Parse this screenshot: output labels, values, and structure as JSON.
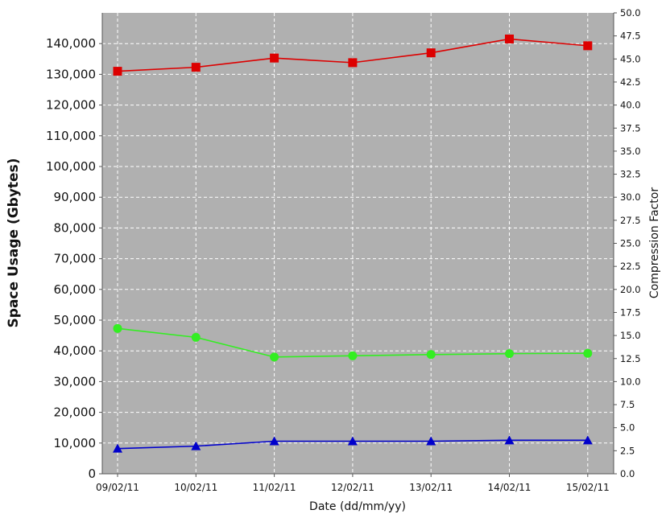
{
  "chart_data": {
    "type": "line",
    "title": "",
    "xlabel": "Date (dd/mm/yy)",
    "ylabel": "Space Usage (Gbytes)",
    "y2label": "Compression Factor",
    "categories": [
      "09/02/11",
      "10/02/11",
      "11/02/11",
      "12/02/11",
      "13/02/11",
      "14/02/11",
      "15/02/11"
    ],
    "ylim": [
      0,
      150000
    ],
    "y2lim": [
      0,
      50
    ],
    "left_ticks": [
      "0",
      "10,000",
      "20,000",
      "30,000",
      "40,000",
      "50,000",
      "60,000",
      "70,000",
      "80,000",
      "90,000",
      "100,000",
      "110,000",
      "120,000",
      "130,000",
      "140,000"
    ],
    "left_tick_values": [
      0,
      10000,
      20000,
      30000,
      40000,
      50000,
      60000,
      70000,
      80000,
      90000,
      100000,
      110000,
      120000,
      130000,
      140000
    ],
    "right_ticks": [
      "0.0",
      "2.5",
      "5.0",
      "7.5",
      "10.0",
      "12.5",
      "15.0",
      "17.5",
      "20.0",
      "22.5",
      "25.0",
      "27.5",
      "30.0",
      "32.5",
      "35.0",
      "37.5",
      "40.0",
      "42.5",
      "45.0",
      "47.5",
      "50.0"
    ],
    "right_tick_values": [
      0,
      2.5,
      5,
      7.5,
      10,
      12.5,
      15,
      17.5,
      20,
      22.5,
      25,
      27.5,
      30,
      32.5,
      35,
      37.5,
      40,
      42.5,
      45,
      47.5,
      50
    ],
    "grid": true,
    "plot_background": "#b0b0b0",
    "series": [
      {
        "axis": "left",
        "color": "#dd0000",
        "marker": "square",
        "values": [
          131000,
          132300,
          135300,
          133800,
          137000,
          141500,
          139300
        ]
      },
      {
        "axis": "left",
        "color": "#33ee22",
        "marker": "circle",
        "values": [
          47300,
          44400,
          38000,
          38400,
          38800,
          39100,
          39200
        ]
      },
      {
        "axis": "left",
        "color": "#0000cc",
        "marker": "triangle",
        "values": [
          8200,
          9000,
          10600,
          10600,
          10600,
          10900,
          10900
        ]
      }
    ]
  }
}
